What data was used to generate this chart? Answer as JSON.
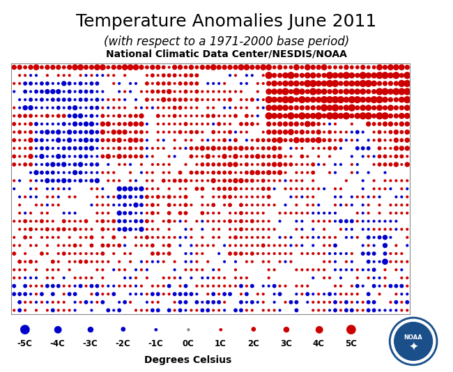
{
  "title": "Temperature Anomalies June 2011",
  "subtitle": "(with respect to a 1971-2000 base period)",
  "source": "National Climatic Data Center/NESDIS/NOAA",
  "xlabel": "Degrees Celsius",
  "legend_values": [
    -5,
    -4,
    -3,
    -2,
    -1,
    0,
    1,
    2,
    3,
    4,
    5
  ],
  "legend_labels": [
    "-5C",
    "-4C",
    "-3C",
    "-2C",
    "-1C",
    "0C",
    "1C",
    "2C",
    "3C",
    "4C",
    "5C"
  ],
  "color_warm": "#cc0000",
  "color_cold": "#0000cc",
  "background_color": "#ffffff",
  "title_fontsize": 18,
  "subtitle_fontsize": 12,
  "source_fontsize": 10,
  "map_xlim": [
    -180,
    180
  ],
  "map_ylim": [
    -70,
    85
  ]
}
